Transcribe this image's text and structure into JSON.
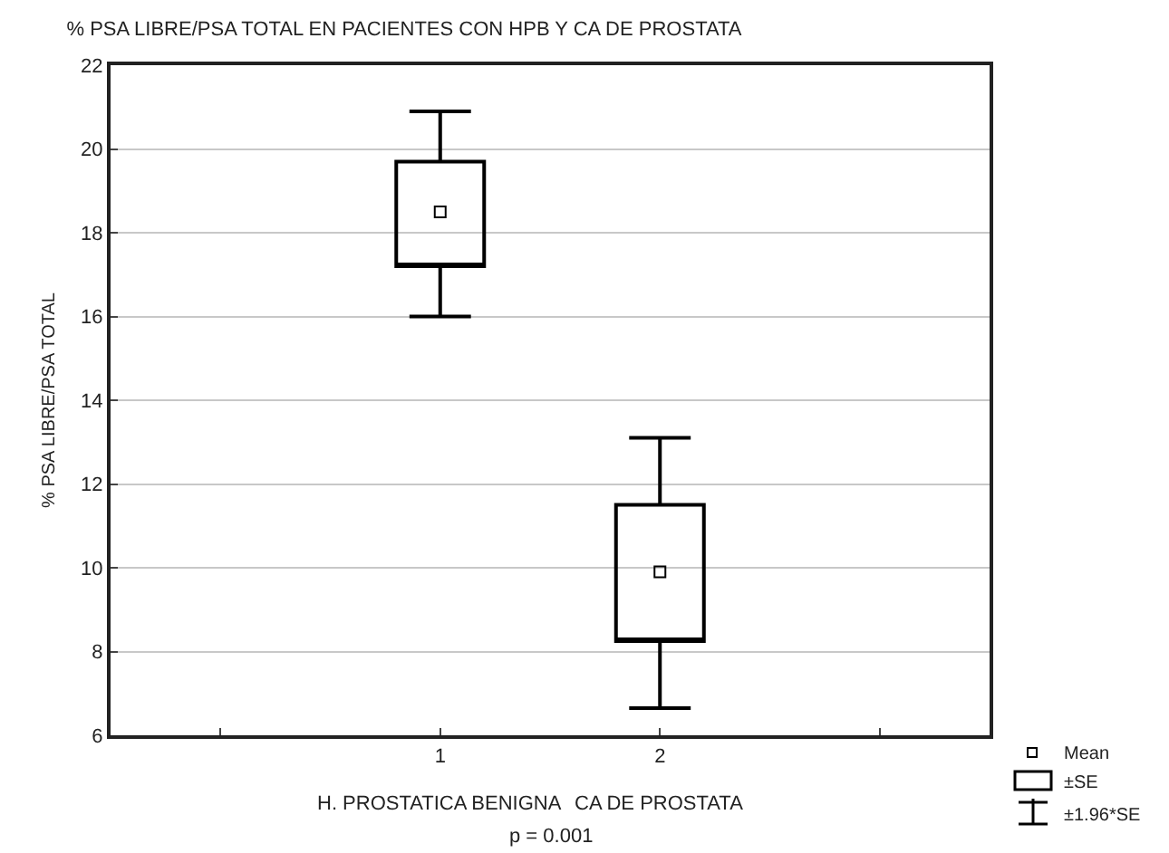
{
  "chart_data": {
    "type": "box",
    "title": "% PSA LIBRE/PSA TOTAL EN PACIENTES CON HPB Y CA DE PROSTATA",
    "ylabel": "% PSA LIBRE/PSA TOTAL",
    "categories": [
      "1",
      "2"
    ],
    "boxes": [
      {
        "low": 16.0,
        "q1": 17.2,
        "q3": 19.7,
        "high": 20.9,
        "mean": 18.5
      },
      {
        "low": 6.65,
        "q1": 8.25,
        "q3": 11.5,
        "high": 13.1,
        "mean": 9.9
      }
    ],
    "color": "#000000",
    "ylim": [
      6,
      22
    ],
    "yticks": [
      6,
      8,
      10,
      12,
      14,
      16,
      18,
      20,
      22
    ],
    "grid": "y",
    "marker": "square",
    "annotations": [
      "H. PROSTATICA BENIGNA",
      "CA DE PROSTATA",
      "p = 0.001",
      "Mean",
      "±SE",
      "±1.96*SE"
    ]
  }
}
